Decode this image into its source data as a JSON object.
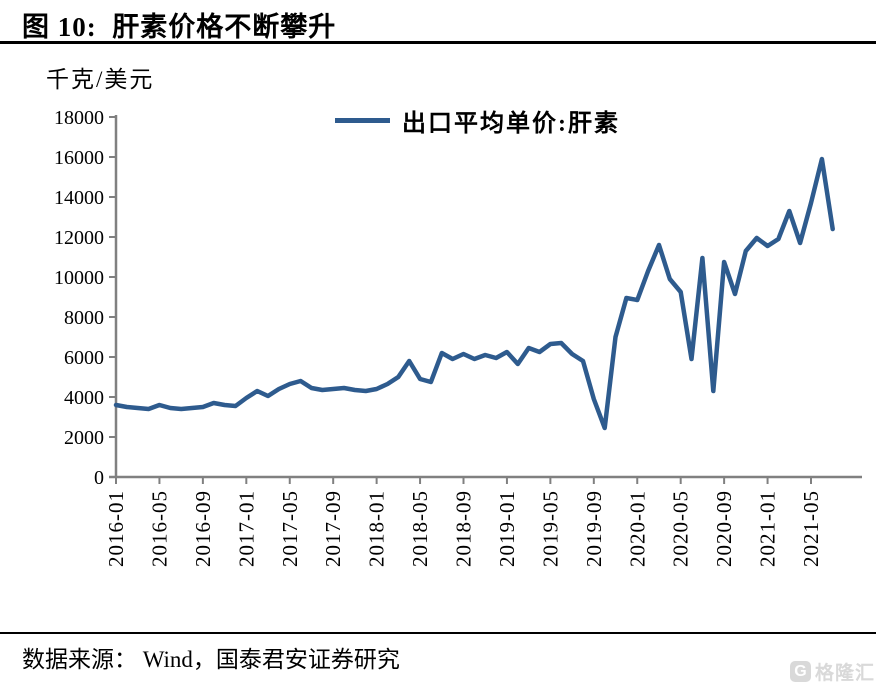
{
  "figure": {
    "title": "图 10:  肝素价格不断攀升",
    "unit_label": "千克/美元",
    "source_label": "数据来源： Wind，国泰君安证券研究",
    "watermark_text": "格隆汇",
    "watermark_icon_letter": "G"
  },
  "legend": {
    "label": "出口平均单价:肝素"
  },
  "colors": {
    "line": "#2E5B8E",
    "axis": "#808080",
    "text": "#000000",
    "watermark": "#D9D9D9"
  },
  "chart_data": {
    "type": "line",
    "title": "出口平均单价:肝素",
    "ylabel": "千克/美元",
    "xlabel": "",
    "grid": false,
    "legend_position": "top-center",
    "line_color": "#2E5B8E",
    "ylim": [
      0,
      18000
    ],
    "y_tick_step": 2000,
    "x_tick_labels": [
      "2016-01",
      "2016-05",
      "2016-09",
      "2017-01",
      "2017-05",
      "2017-09",
      "2018-01",
      "2018-05",
      "2018-09",
      "2019-01",
      "2019-05",
      "2019-09",
      "2020-01",
      "2020-05",
      "2020-09",
      "2021-01",
      "2021-05"
    ],
    "x": [
      "2016-01",
      "2016-02",
      "2016-03",
      "2016-04",
      "2016-05",
      "2016-06",
      "2016-07",
      "2016-08",
      "2016-09",
      "2016-10",
      "2016-11",
      "2016-12",
      "2017-01",
      "2017-02",
      "2017-03",
      "2017-04",
      "2017-05",
      "2017-06",
      "2017-07",
      "2017-08",
      "2017-09",
      "2017-10",
      "2017-11",
      "2017-12",
      "2018-01",
      "2018-02",
      "2018-03",
      "2018-04",
      "2018-05",
      "2018-06",
      "2018-07",
      "2018-08",
      "2018-09",
      "2018-10",
      "2018-11",
      "2018-12",
      "2019-01",
      "2019-02",
      "2019-03",
      "2019-04",
      "2019-05",
      "2019-06",
      "2019-07",
      "2019-08",
      "2019-09",
      "2019-10",
      "2019-11",
      "2019-12",
      "2020-01",
      "2020-02",
      "2020-03",
      "2020-04",
      "2020-05",
      "2020-06",
      "2020-07",
      "2020-08",
      "2020-09",
      "2020-10",
      "2020-11",
      "2020-12",
      "2021-01",
      "2021-02",
      "2021-03",
      "2021-04",
      "2021-05",
      "2021-06",
      "2021-07"
    ],
    "values": [
      3600,
      3500,
      3450,
      3400,
      3600,
      3450,
      3400,
      3450,
      3500,
      3700,
      3600,
      3550,
      3950,
      4300,
      4050,
      4400,
      4650,
      4800,
      4450,
      4350,
      4400,
      4450,
      4350,
      4300,
      4400,
      4650,
      5000,
      5800,
      4900,
      4750,
      6200,
      5900,
      6150,
      5900,
      6100,
      5950,
      6250,
      5650,
      6450,
      6250,
      6650,
      6700,
      6150,
      5800,
      3900,
      2450,
      7000,
      8950,
      8850,
      10300,
      11600,
      9900,
      9250,
      5900,
      10950,
      4300,
      10750,
      9150,
      11300,
      11950,
      11550,
      11900,
      13300,
      11700,
      13700,
      15900,
      12400
    ]
  }
}
